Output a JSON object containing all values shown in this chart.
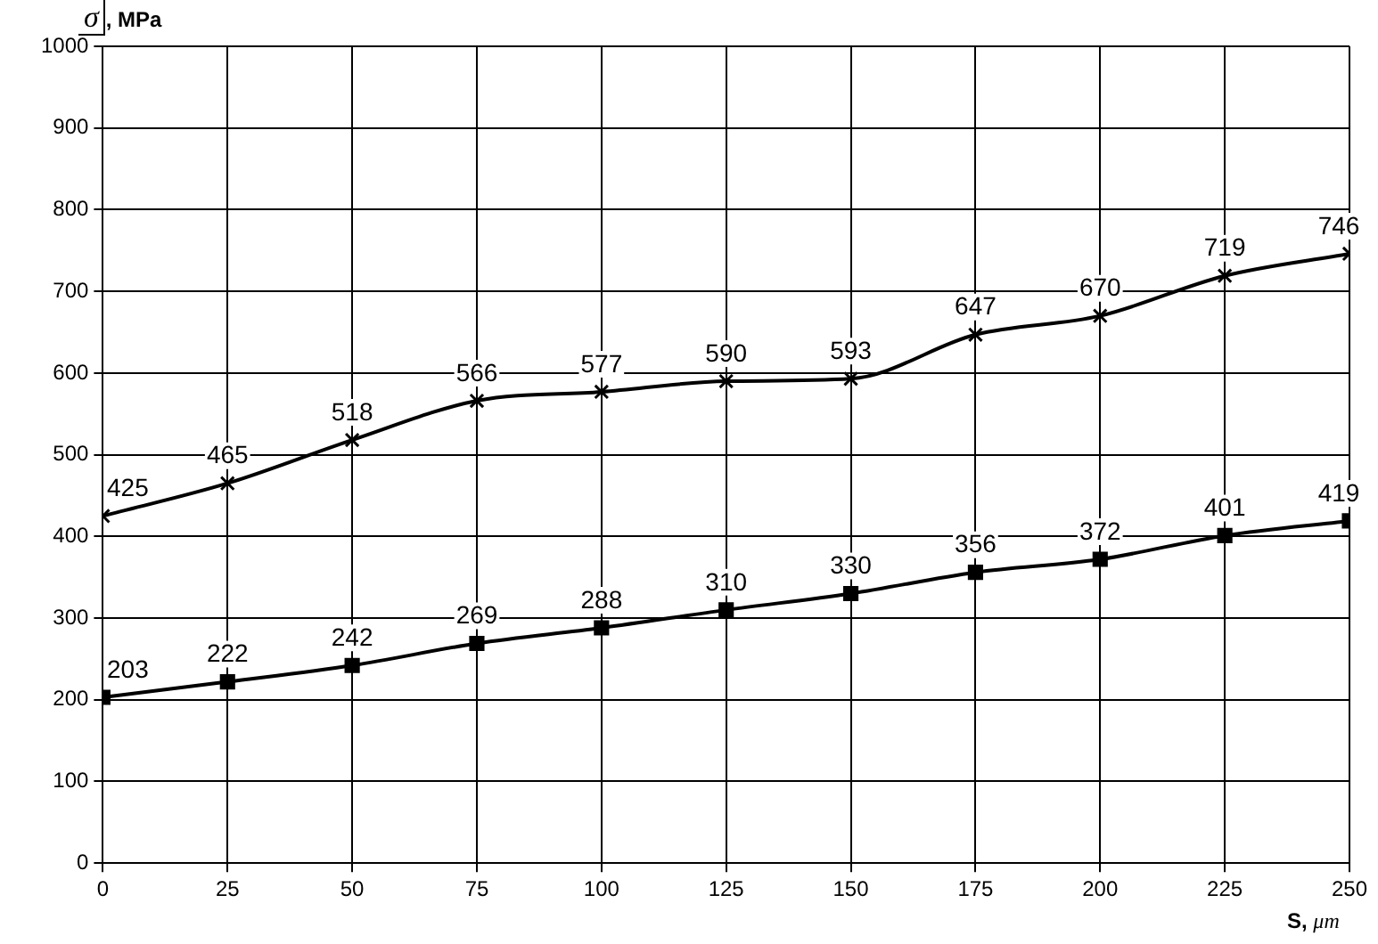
{
  "chart_data": {
    "type": "line",
    "xlabel": "S, μm",
    "ylabel": "σ, MPa",
    "x": [
      0,
      25,
      50,
      75,
      100,
      125,
      150,
      175,
      200,
      225,
      250
    ],
    "xlim": [
      0,
      250
    ],
    "xticks": [
      0,
      25,
      50,
      75,
      100,
      125,
      150,
      175,
      200,
      225,
      250
    ],
    "ylim": [
      0,
      1000
    ],
    "yticks": [
      0,
      100,
      200,
      300,
      400,
      500,
      600,
      700,
      800,
      900,
      1000
    ],
    "grid": true,
    "legend": false,
    "data_labels": true,
    "line_style": "solid",
    "series": [
      {
        "color": "#000000",
        "marker": "cross",
        "values": [
          425,
          465,
          518,
          566,
          577,
          590,
          593,
          647,
          670,
          719,
          746
        ]
      },
      {
        "color": "#000000",
        "marker": "square",
        "values": [
          203,
          222,
          242,
          269,
          288,
          310,
          330,
          356,
          372,
          401,
          419
        ]
      }
    ]
  }
}
